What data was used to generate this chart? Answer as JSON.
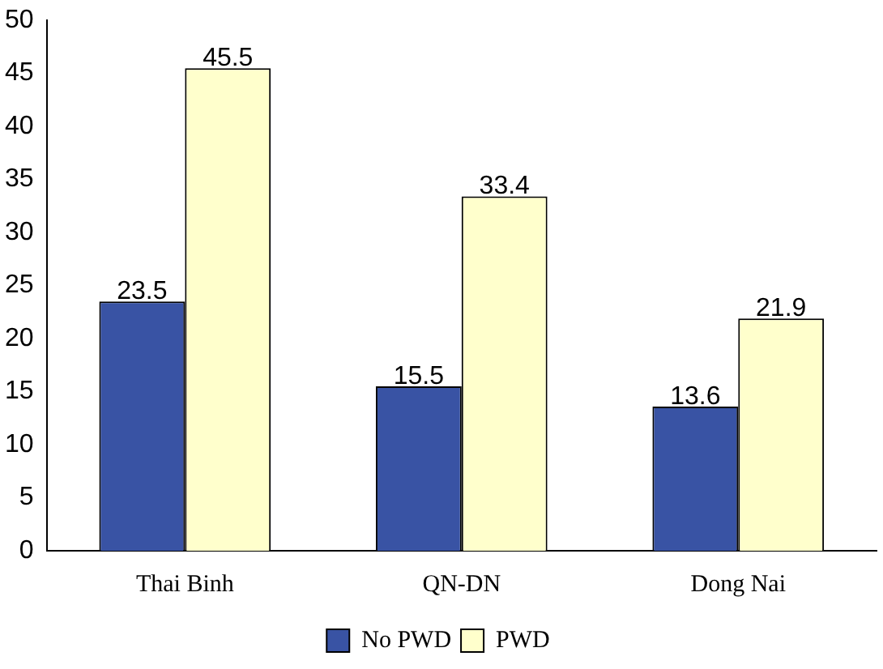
{
  "chart_data": {
    "type": "bar",
    "categories": [
      "Thai Binh",
      "QN-DN",
      "Dong Nai"
    ],
    "series": [
      {
        "name": "No PWD",
        "color": "#3953a4",
        "values": [
          23.5,
          15.5,
          13.6
        ]
      },
      {
        "name": "PWD",
        "color": "#ffffcc",
        "values": [
          45.5,
          33.4,
          21.9
        ]
      }
    ],
    "ylim": [
      0,
      50
    ],
    "yticks": [
      0,
      5,
      10,
      15,
      20,
      25,
      30,
      35,
      40,
      45,
      50
    ],
    "grid": false,
    "legend": "bottom",
    "data_labels": true
  }
}
